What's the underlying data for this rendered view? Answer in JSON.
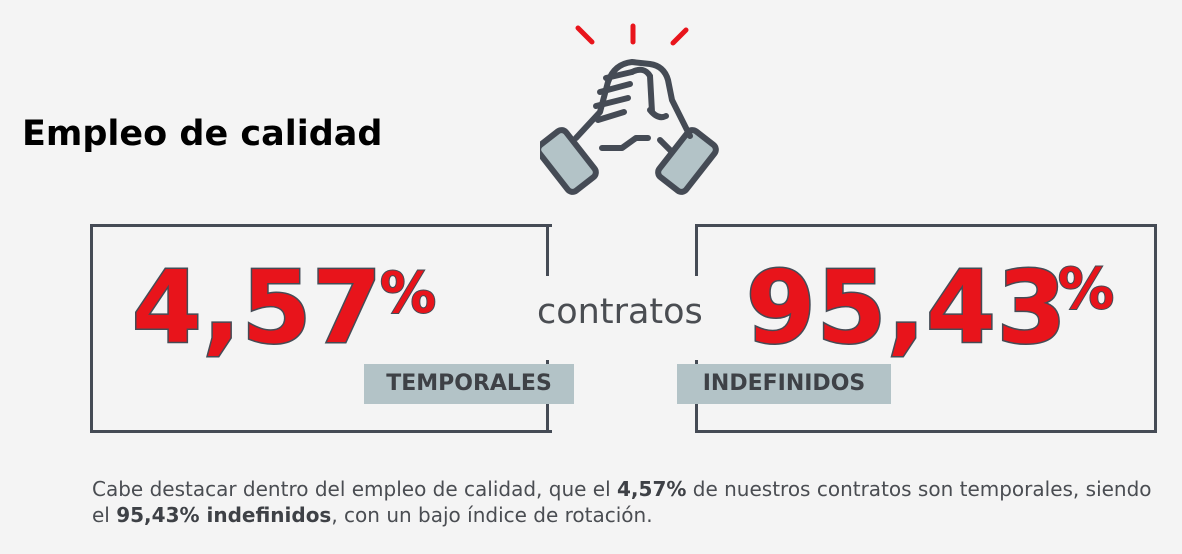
{
  "title": "Empleo de calidad",
  "left": {
    "value": "4,57",
    "unit": "%",
    "tag": "TEMPORALES"
  },
  "middle_label": "contratos",
  "right": {
    "value": "95,43",
    "unit": "%",
    "tag": "INDEFINIDOS"
  },
  "note": {
    "p1": "Cabe destacar dentro del empleo de calidad, que el ",
    "b1": "4,57%",
    "p2": " de nuestros contratos son temporales, siendo el ",
    "b2": "95,43% indefinidos",
    "p3": ", con un bajo índice de rotación."
  },
  "icon": "handshake-arm-wrestle-icon",
  "colors": {
    "accent": "#e8141b",
    "outline": "#454b55",
    "tag_bg": "#b3c3c7",
    "background": "#f4f4f4"
  }
}
